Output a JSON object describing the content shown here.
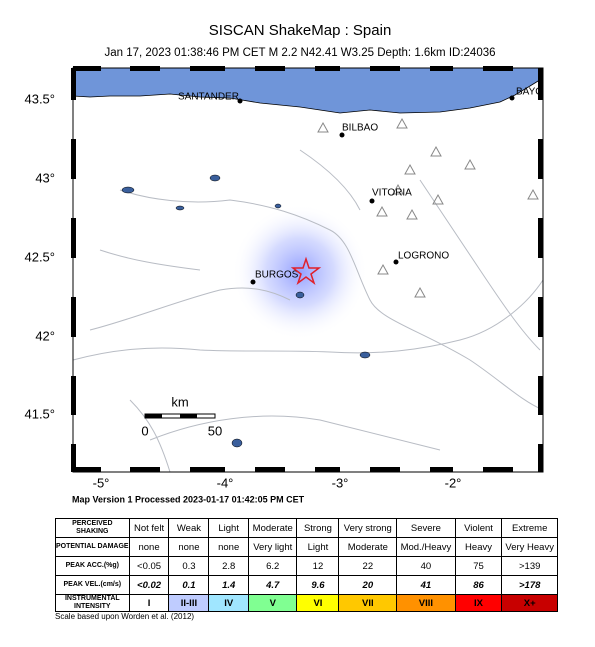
{
  "header": {
    "title": "SISCAN ShakeMap : Spain",
    "subtitle": "Jan 17, 2023 01:38:46 PM CET   M 2.2   N42.41 W3.25   Depth: 1.6km   ID:24036"
  },
  "map": {
    "lat_labels": [
      "43.5°",
      "43°",
      "42.5°",
      "42°",
      "41.5°"
    ],
    "lon_labels": [
      "-5°",
      "-4°",
      "-3°",
      "-2°"
    ],
    "cities": [
      "SANTANDER",
      "BILBAO",
      "VITORIA",
      "LOGRONO",
      "BURGOS",
      "BAYC"
    ],
    "scale": {
      "unit": "km",
      "labels": [
        "0",
        "50"
      ]
    }
  },
  "footer": {
    "processed": "Map Version 1 Processed 2023-01-17 01:42:05 PM CET",
    "note": "Scale based upon Worden et al. (2012)"
  },
  "table": {
    "rows": [
      [
        "PERCEIVED SHAKING",
        "Not felt",
        "Weak",
        "Light",
        "Moderate",
        "Strong",
        "Very strong",
        "Severe",
        "Violent",
        "Extreme"
      ],
      [
        "POTENTIAL DAMAGE",
        "none",
        "none",
        "none",
        "Very light",
        "Light",
        "Moderate",
        "Mod./Heavy",
        "Heavy",
        "Very Heavy"
      ],
      [
        "PEAK ACC.(%g)",
        "<0.05",
        "0.3",
        "2.8",
        "6.2",
        "12",
        "22",
        "40",
        "75",
        ">139"
      ],
      [
        "PEAK VEL.(cm/s)",
        "<0.02",
        "0.1",
        "1.4",
        "4.7",
        "9.6",
        "20",
        "41",
        "86",
        ">178"
      ],
      [
        "INSTRUMENTAL INTENSITY",
        "I",
        "II-III",
        "IV",
        "V",
        "VI",
        "VII",
        "VIII",
        "IX",
        "X+"
      ]
    ]
  }
}
